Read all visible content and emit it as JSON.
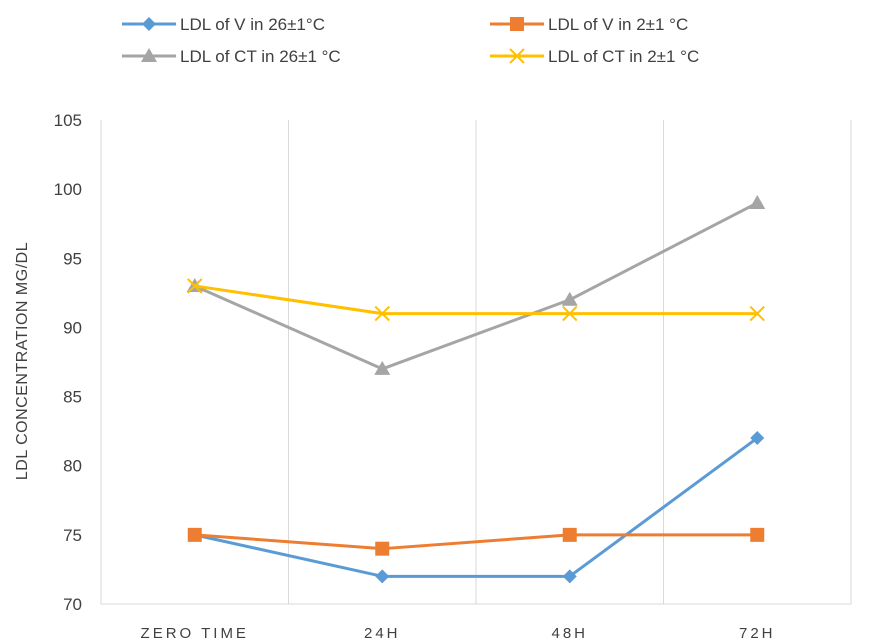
{
  "chart_data": {
    "type": "line",
    "title": "",
    "xlabel": "",
    "ylabel": "LDL CONCENTRATION MG/DL",
    "categories": [
      "ZERO TIME",
      "24H",
      "48H",
      "72H"
    ],
    "ylim": [
      70,
      105
    ],
    "yticks": [
      70,
      75,
      80,
      85,
      90,
      95,
      100,
      105
    ],
    "grid": "vertical",
    "legend_position": "top",
    "series": [
      {
        "name": "LDL of V in 26±1°C",
        "values": [
          75,
          72,
          72,
          82
        ],
        "color": "#5b9bd5",
        "marker": "diamond"
      },
      {
        "name": "LDL of V in 2±1 °C",
        "values": [
          75,
          74,
          75,
          75
        ],
        "color": "#ed7d31",
        "marker": "square"
      },
      {
        "name": "LDL of CT in 26±1 °C",
        "values": [
          93,
          87,
          92,
          99
        ],
        "color": "#a5a5a5",
        "marker": "triangle"
      },
      {
        "name": "LDL of CT in 2±1 °C",
        "values": [
          93,
          91,
          91,
          91
        ],
        "color": "#ffc000",
        "marker": "x"
      }
    ]
  }
}
